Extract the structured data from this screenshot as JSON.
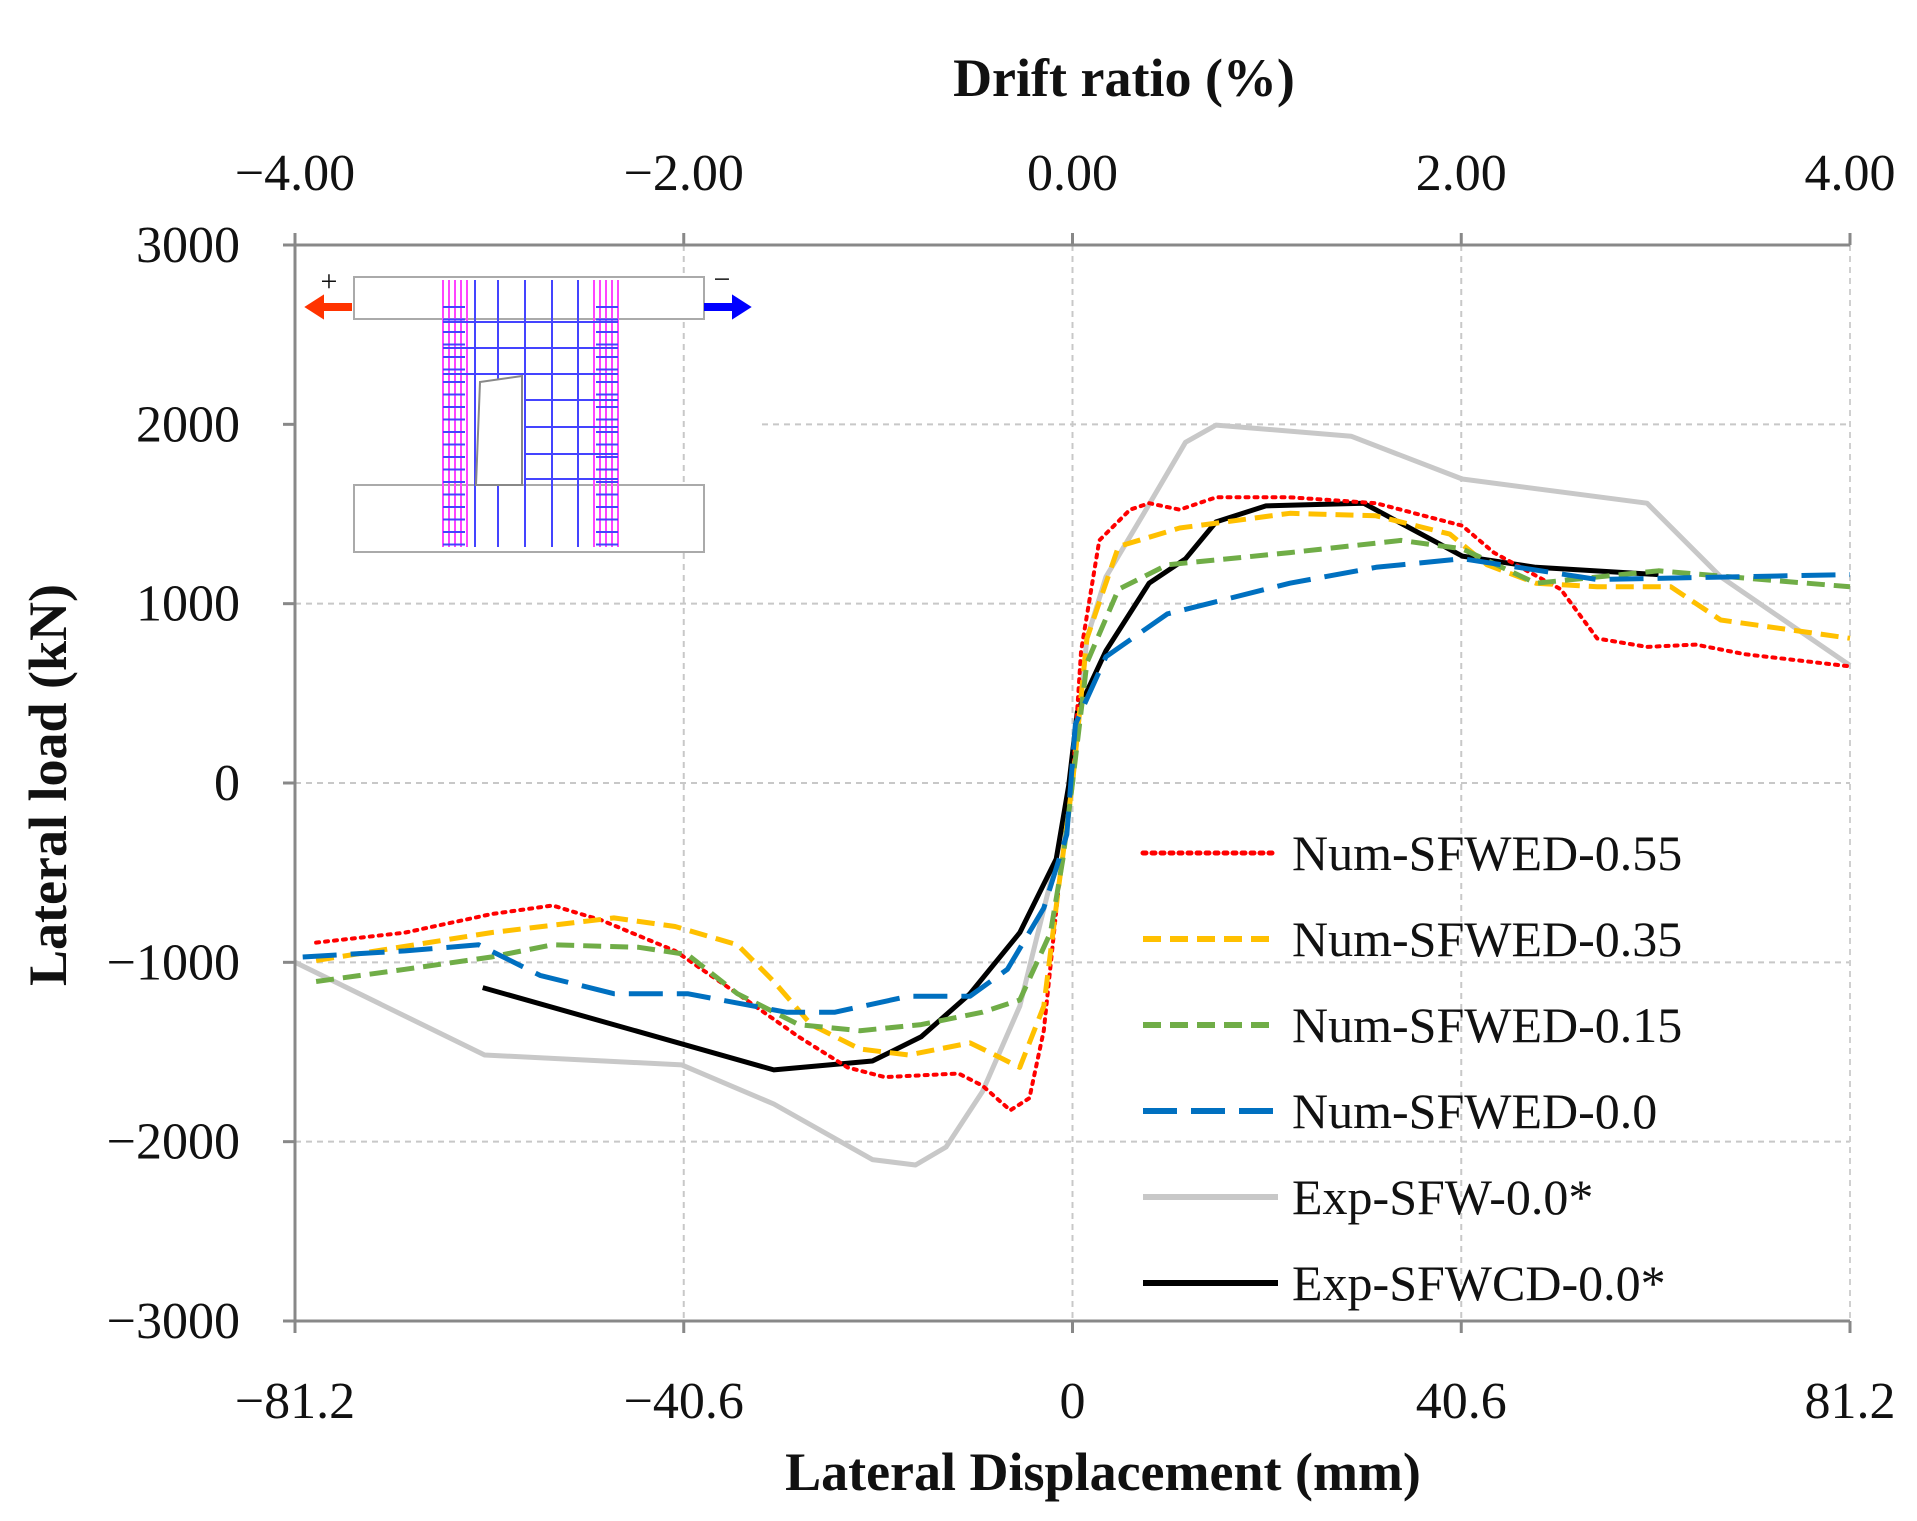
{
  "chart_data": {
    "type": "line",
    "title": "",
    "top_axis_label": "Drift ratio (%)",
    "xlabel": "Lateral Displacement (mm)",
    "ylabel": "Lateral load (kN)",
    "xlim": [
      -81.2,
      81.2
    ],
    "ylim": [
      -3000,
      3000
    ],
    "top_xlim": [
      -4.0,
      4.0
    ],
    "x_ticks": [
      "−81.2",
      "−40.6",
      "0",
      "40.6",
      "81.2"
    ],
    "x_tick_values": [
      -81.2,
      -40.6,
      0,
      40.6,
      81.2
    ],
    "top_ticks": [
      "−4.00",
      "−2.00",
      "0.00",
      "2.00",
      "4.00"
    ],
    "y_ticks": [
      "3000",
      "2000",
      "1000",
      "0",
      "−1000",
      "−2000",
      "−3000"
    ],
    "y_tick_values": [
      3000,
      2000,
      1000,
      0,
      -1000,
      -2000,
      -3000
    ],
    "grid": true,
    "legend_position": "bottom-right",
    "inset_labels": {
      "plus": "+",
      "minus": "−"
    },
    "series": [
      {
        "name": "Num-SFWED-0.55",
        "color": "#ff0000",
        "style": "dotted",
        "x": [
          -79,
          -69.7,
          -60.7,
          -54.3,
          -49.2,
          -41.5,
          -35,
          -28.6,
          -23.5,
          -19.6,
          -11.9,
          -9.4,
          -6.5,
          -4.5,
          -3,
          -1.4,
          0,
          0.9,
          2.8,
          6,
          8,
          11.2,
          15,
          22.7,
          31.7,
          40.7,
          44,
          51,
          54.8,
          60,
          65.1,
          70.2,
          81.2
        ],
        "y": [
          -890,
          -834,
          -731,
          -683,
          -765,
          -936,
          -1175,
          -1415,
          -1586,
          -1640,
          -1620,
          -1688,
          -1825,
          -1757,
          -1380,
          -560,
          0,
          738,
          1353,
          1524,
          1560,
          1524,
          1593,
          1593,
          1560,
          1435,
          1285,
          1080,
          806,
          759,
          772,
          718,
          650
        ]
      },
      {
        "name": "Num-SFWED-0.35",
        "color": "#ffc000",
        "style": "dashed",
        "x": [
          -79,
          -60.7,
          -47.9,
          -41.5,
          -35,
          -31.2,
          -27.3,
          -22.2,
          -17.1,
          -10.7,
          -8.1,
          -5.5,
          -3,
          -1.4,
          0,
          1.5,
          4.8,
          11.2,
          22.7,
          31.7,
          39.4,
          43.3,
          48.4,
          54.8,
          62.5,
          67.7,
          81.2
        ],
        "y": [
          -990,
          -834,
          -752,
          -800,
          -902,
          -1107,
          -1347,
          -1483,
          -1517,
          -1449,
          -1517,
          -1586,
          -1244,
          -560,
          0,
          806,
          1319,
          1422,
          1504,
          1490,
          1388,
          1217,
          1114,
          1094,
          1094,
          909,
          807
        ]
      },
      {
        "name": "Num-SFWED-0.15",
        "color": "#70ad47",
        "style": "dashed",
        "x": [
          -79,
          -69.7,
          -60.7,
          -54.3,
          -45.3,
          -40.2,
          -35,
          -28.6,
          -22.2,
          -15.8,
          -9.4,
          -5.5,
          -2.3,
          -1,
          0,
          1.5,
          4.8,
          9.9,
          22.7,
          34.3,
          40.7,
          48.4,
          61.2,
          81.2
        ],
        "y": [
          -1107,
          -1039,
          -970,
          -902,
          -916,
          -957,
          -1175,
          -1347,
          -1381,
          -1347,
          -1278,
          -1210,
          -834,
          -424,
          0,
          670,
          1080,
          1217,
          1285,
          1353,
          1306,
          1114,
          1183,
          1094
        ]
      },
      {
        "name": "Num-SFWED-0.0",
        "color": "#0070c0",
        "style": "longdash",
        "x": [
          -80.4,
          -69.7,
          -62,
          -55.6,
          -47.9,
          -40.2,
          -29.9,
          -24.8,
          -17.1,
          -10.7,
          -6.8,
          -3,
          -0.6,
          0.3,
          3.5,
          9.9,
          22.7,
          31.7,
          40.7,
          54.8,
          67.7,
          81.2
        ],
        "y": [
          -970,
          -936,
          -902,
          -1073,
          -1175,
          -1175,
          -1278,
          -1278,
          -1189,
          -1189,
          -1039,
          -697,
          -287,
          328,
          704,
          943,
          1114,
          1203,
          1251,
          1135,
          1148,
          1162
        ]
      },
      {
        "name": "Exp-SFW-0.0*",
        "color": "#c8c8c8",
        "style": "solid",
        "x": [
          -81.2,
          -61.4,
          -40.8,
          -31.2,
          -20.9,
          -16.4,
          -13.2,
          -9.4,
          -5.5,
          -1.7,
          0,
          1.5,
          3.5,
          7.3,
          11.8,
          15,
          29.1,
          40.7,
          60,
          67.7,
          81.2
        ],
        "y": [
          -1000,
          -1517,
          -1572,
          -1790,
          -2100,
          -2130,
          -2030,
          -1720,
          -1244,
          -424,
          0,
          806,
          1150,
          1490,
          1900,
          1996,
          1934,
          1695,
          1560,
          1150,
          656
        ]
      },
      {
        "name": "Exp-SFWCD-0.0*",
        "color": "#000000",
        "style": "solid",
        "x": [
          -61.6,
          -31.2,
          -20.9,
          -15.8,
          -10.7,
          -5.5,
          -1.7,
          -0.4,
          0.5,
          3.5,
          8,
          11.8,
          15,
          20.2,
          30.4,
          40.7,
          48.4,
          61.2
        ],
        "y": [
          -1141,
          -1600,
          -1550,
          -1415,
          -1175,
          -834,
          -424,
          -14,
          396,
          738,
          1114,
          1250,
          1456,
          1545,
          1560,
          1265,
          1203,
          1162
        ]
      }
    ]
  }
}
